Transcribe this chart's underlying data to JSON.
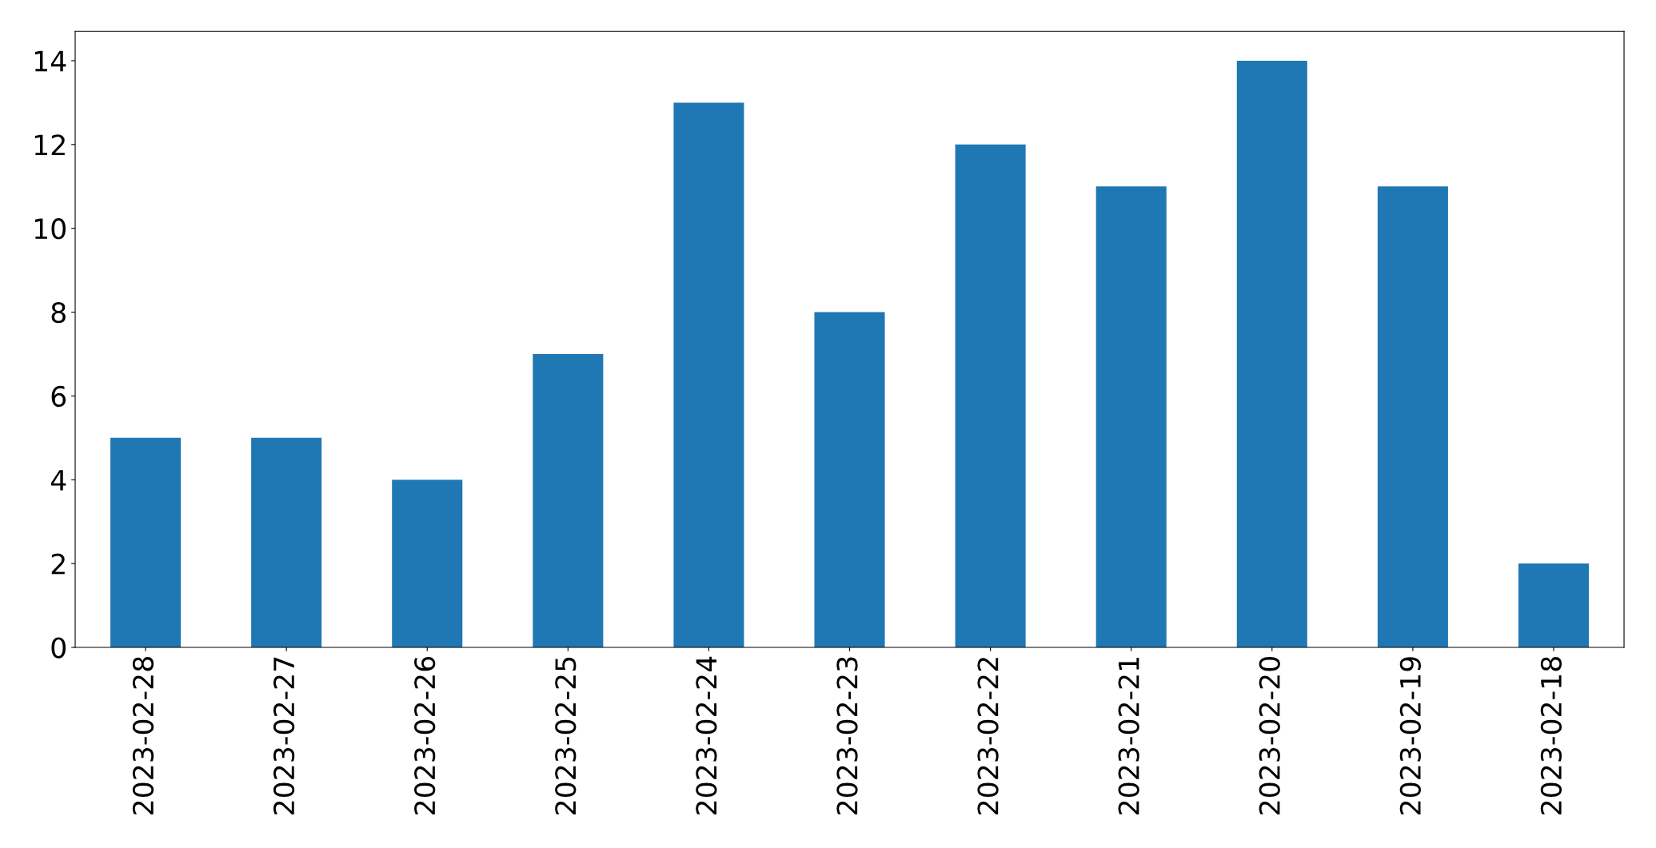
{
  "chart_data": {
    "type": "bar",
    "categories": [
      "2023-02-28",
      "2023-02-27",
      "2023-02-26",
      "2023-02-25",
      "2023-02-24",
      "2023-02-23",
      "2023-02-22",
      "2023-02-21",
      "2023-02-20",
      "2023-02-19",
      "2023-02-18"
    ],
    "values": [
      5,
      5,
      4,
      7,
      13,
      8,
      12,
      11,
      14,
      11,
      2
    ],
    "color": "#1f77b4",
    "ylim": [
      0,
      14.7
    ],
    "yticks": [
      0,
      2,
      4,
      6,
      8,
      10,
      12,
      14
    ]
  }
}
